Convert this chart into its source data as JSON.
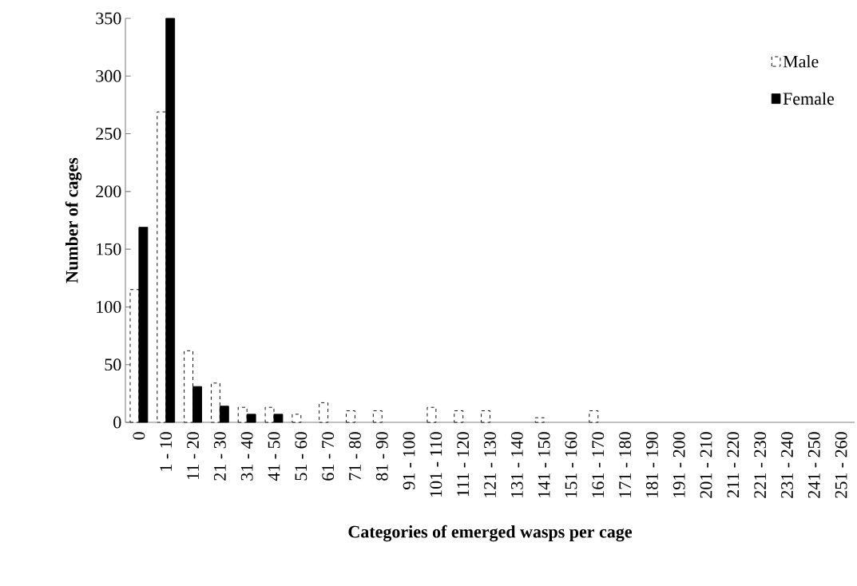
{
  "chart_data": {
    "type": "bar",
    "xlabel": "Categories of emerged wasps per cage",
    "ylabel": "Number of cages",
    "categories": [
      "0",
      "1 - 10",
      "11 - 20",
      "21 - 30",
      "31 - 40",
      "41 - 50",
      "51 - 60",
      "61 - 70",
      "71 - 80",
      "81 - 90",
      "91 - 100",
      "101 - 110",
      "111 - 120",
      "121 - 130",
      "131 - 140",
      "141 - 150",
      "151 - 160",
      "161 - 170",
      "171 - 180",
      "181 - 190",
      "191 - 200",
      "201 - 210",
      "211 - 220",
      "221 - 230",
      "231 - 240",
      "241 - 250",
      "251 - 260"
    ],
    "series": [
      {
        "name": "Male",
        "color": "#ffffff",
        "line_style": "dashed",
        "values": [
          115,
          269,
          62,
          34,
          13,
          13,
          7,
          17,
          10,
          10,
          null,
          13,
          10,
          10,
          null,
          4,
          null,
          10,
          null,
          null,
          null,
          null,
          null,
          null,
          null,
          null,
          null
        ]
      },
      {
        "name": "Female",
        "color": "#000000",
        "values": [
          169,
          350,
          31,
          14,
          7,
          7,
          null,
          null,
          null,
          null,
          null,
          null,
          null,
          null,
          null,
          null,
          null,
          null,
          null,
          null,
          null,
          null,
          null,
          null,
          null,
          null,
          null
        ]
      }
    ],
    "ylim": [
      0,
      350
    ],
    "yticks": [
      0,
      50,
      100,
      150,
      200,
      250,
      300,
      350
    ],
    "legend": "top right",
    "grid": false
  }
}
